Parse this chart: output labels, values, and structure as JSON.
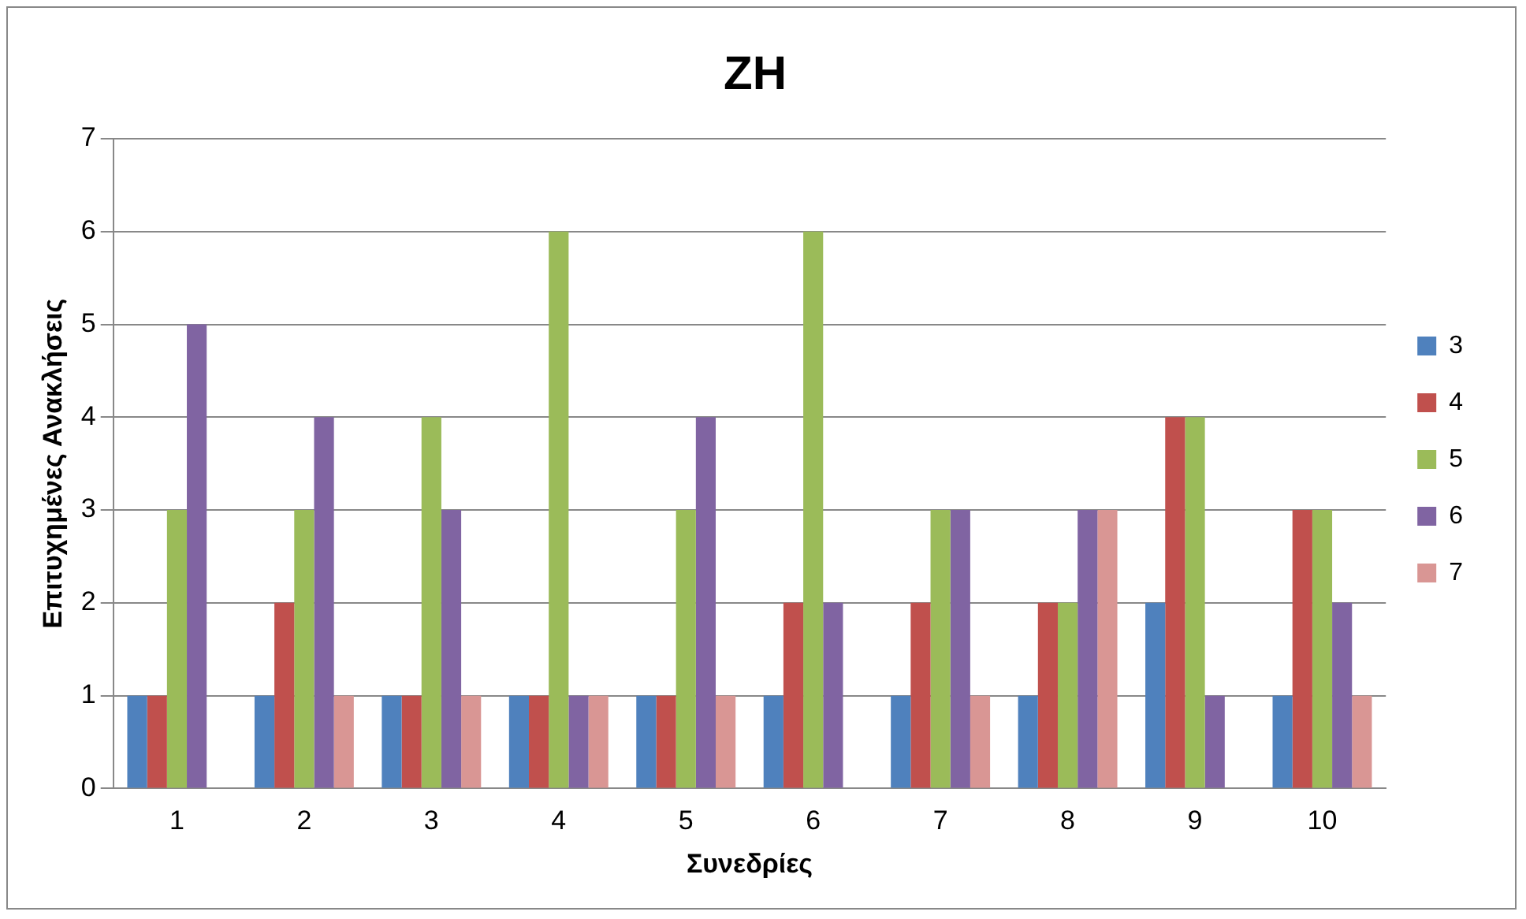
{
  "chart_data": {
    "type": "bar",
    "title": "ΖΗ",
    "xlabel": "Συνεδρίες",
    "ylabel": "Επιτυχημένες Ανακλήσεις",
    "categories": [
      "1",
      "2",
      "3",
      "4",
      "5",
      "6",
      "7",
      "8",
      "9",
      "10"
    ],
    "series": [
      {
        "name": "3",
        "color": "#4f81bd",
        "values": [
          1,
          1,
          1,
          1,
          1,
          1,
          1,
          1,
          2,
          1
        ]
      },
      {
        "name": "4",
        "color": "#c0504d",
        "values": [
          1,
          2,
          1,
          1,
          1,
          2,
          2,
          2,
          4,
          3
        ]
      },
      {
        "name": "5",
        "color": "#9bbb59",
        "values": [
          3,
          3,
          4,
          6,
          3,
          6,
          3,
          2,
          4,
          3
        ]
      },
      {
        "name": "6",
        "color": "#8064a2",
        "values": [
          5,
          4,
          3,
          1,
          4,
          2,
          3,
          3,
          1,
          2
        ]
      },
      {
        "name": "7",
        "color": "#d99694",
        "values": [
          0,
          1,
          1,
          1,
          1,
          0,
          1,
          3,
          0,
          1
        ]
      }
    ],
    "ylim": [
      0,
      7
    ],
    "yticks": [
      0,
      1,
      2,
      3,
      4,
      5,
      6,
      7
    ],
    "grid": "y",
    "legend": "right"
  }
}
